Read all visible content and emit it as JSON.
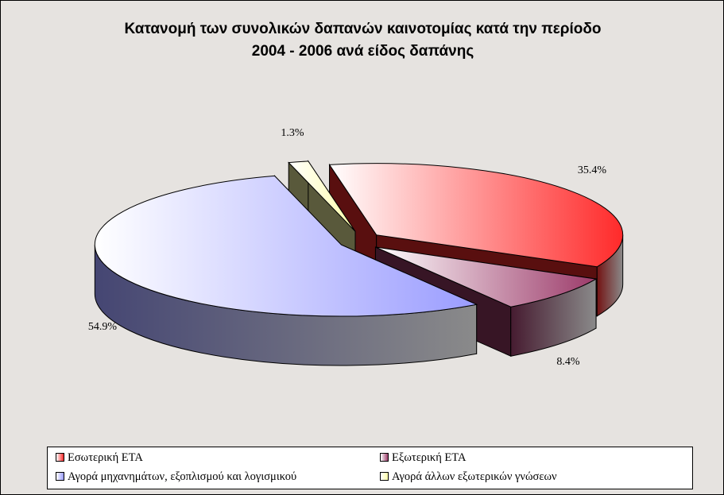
{
  "title": {
    "line1": "Κατανομή των συνολικών δαπανών καινοτομίας κατά την περίοδο",
    "line2": "2004 - 2006 ανά είδος δαπάνης"
  },
  "chart_data": {
    "type": "pie",
    "title": "Κατανομή των συνολικών δαπανών καινοτομίας κατά την περίοδο 2004 - 2006 ανά είδος δαπάνης",
    "slices": [
      {
        "name": "Εσωτερική ΕΤΑ",
        "value": 35.4,
        "label": "35.4%",
        "color": "#ff2a2a"
      },
      {
        "name": "Εξωτερική ΕΤΑ",
        "value": 8.4,
        "label": "8.4%",
        "color": "#9c3b6a"
      },
      {
        "name": "Αγορά μηχανημάτων, εξοπλισμού και λογισμικού",
        "value": 54.9,
        "label": "54.9%",
        "color": "#9a9cff"
      },
      {
        "name": "Αγορά άλλων εξωτερικών γνώσεων",
        "value": 1.3,
        "label": "1.3%",
        "color": "#ffffa8"
      }
    ],
    "start_angle_deg": 259,
    "exploded": true,
    "three_d": true,
    "legend_position": "bottom"
  },
  "legend": {
    "items": [
      {
        "label": "Εσωτερική ΕΤΑ",
        "color": "#ff2a2a"
      },
      {
        "label": "Εξωτερική ΕΤΑ",
        "color": "#9c3b6a"
      },
      {
        "label": "Αγορά μηχανημάτων, εξοπλισμού και λογισμικού",
        "color": "#9a9cff"
      },
      {
        "label": "Αγορά άλλων εξωτερικών γνώσεων",
        "color": "#ffffa8"
      }
    ]
  }
}
